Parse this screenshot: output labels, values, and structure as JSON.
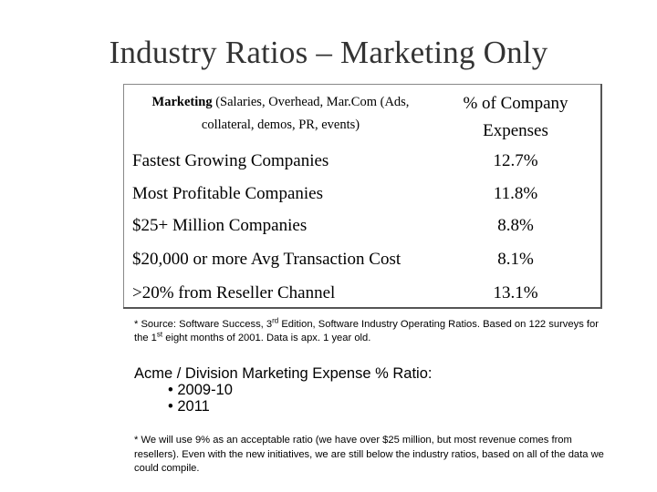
{
  "title": "Industry Ratios – Marketing Only",
  "table": {
    "header_left_bold": "Marketing",
    "header_left_rest_line1": " (Salaries, Overhead, Mar.Com (Ads,",
    "header_left_line2": "collateral, demos, PR, events)",
    "header_right_line1": "% of Company",
    "header_right_line2": "Expenses",
    "rows": [
      {
        "label": "Fastest Growing Companies",
        "value": "12.7%"
      },
      {
        "label": "Most Profitable Companies",
        "value": "11.8%"
      },
      {
        "label": "$25+ Million Companies",
        "value": "8.8%"
      },
      {
        "label": "$20,000 or more Avg Transaction Cost",
        "value": "8.1%"
      },
      {
        "label": ">20% from Reseller Channel",
        "value": "13.1%"
      }
    ]
  },
  "source_note": {
    "part1": "* Source: Software Success, 3",
    "sup1": "rd",
    "part2": " Edition, Software Industry Operating Ratios. Based on 122 surveys for the 1",
    "sup2": "st",
    "part3": " eight months of 2001.  Data is apx. 1 year old."
  },
  "acme": {
    "heading": "Acme / Division Marketing Expense % Ratio:",
    "items": [
      "• 2009-10",
      "• 2011"
    ]
  },
  "footnote": "* We will use 9% as an acceptable ratio (we have over $25 million, but most revenue comes from resellers).  Even with the new initiatives, we are still below the industry ratios, based on all of the data we could compile."
}
